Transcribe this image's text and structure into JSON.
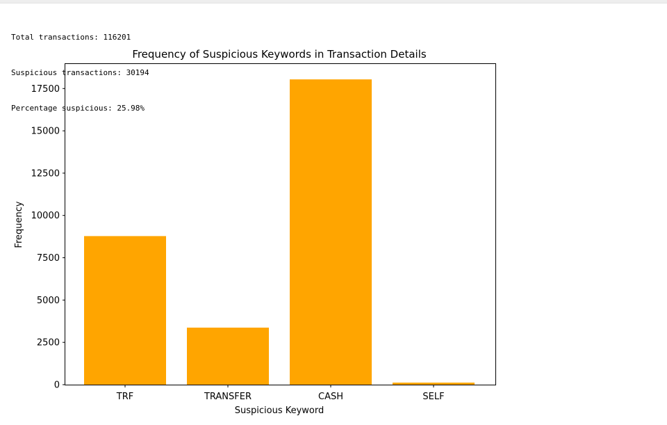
{
  "output": {
    "lines": [
      "Total transactions: 116201",
      "Suspicious transactions: 30194",
      "Percentage suspicious: 25.98%"
    ]
  },
  "chart_data": {
    "type": "bar",
    "title": "Frequency of Suspicious Keywords in Transaction Details",
    "xlabel": "Suspicious Keyword",
    "ylabel": "Frequency",
    "categories": [
      "TRF",
      "TRANSFER",
      "CASH",
      "SELF"
    ],
    "values": [
      8780,
      3370,
      18040,
      120
    ],
    "ylim": [
      0,
      18950
    ],
    "yticks": [
      0,
      2500,
      5000,
      7500,
      10000,
      12500,
      15000,
      17500
    ],
    "grid": false,
    "legend": "none",
    "bar_color": "#ffa500"
  }
}
